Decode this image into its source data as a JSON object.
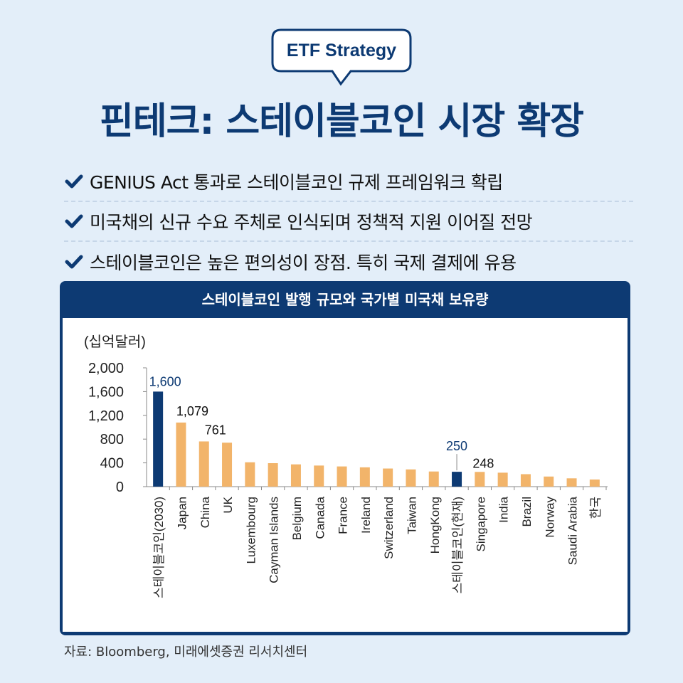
{
  "badge": "ETF Strategy",
  "title": "핀테크: 스테이블코인 시장 확장",
  "bullets": [
    "GENIUS Act 통과로 스테이블코인 규제 프레임워크 확립",
    "미국채의 신규 수요 주체로 인식되며 정책적 지원 이어질 전망",
    "스테이블코인은 높은 편의성이 장점. 특히 국제 결제에 유용"
  ],
  "colors": {
    "navy": "#0d3a73",
    "orange": "#f2b46a",
    "background": "#e3eef9"
  },
  "chart_data": {
    "type": "bar",
    "title": "스테이블코인 발행 규모와 국가별 미국채 보유량",
    "unit_label": "(십억달러)",
    "ylim": [
      0,
      2000
    ],
    "yticks": [
      "2,000",
      "1,600",
      "1,200",
      "800",
      "400",
      "0"
    ],
    "ytick_values": [
      2000,
      1600,
      1200,
      800,
      400,
      0
    ],
    "grid": false,
    "legend": "none",
    "categories": [
      "스테이블코인(2030)",
      "Japan",
      "China",
      "UK",
      "Luxembourg",
      "Cayman Islands",
      "Belgium",
      "Canada",
      "France",
      "Ireland",
      "Switzerland",
      "Taiwan",
      "HongKong",
      "스테이블코인(현재)",
      "Singapore",
      "India",
      "Brazil",
      "Norway",
      "Saudi Arabia",
      "한국"
    ],
    "values": [
      1600,
      1079,
      761,
      740,
      410,
      395,
      375,
      355,
      340,
      325,
      305,
      290,
      255,
      250,
      248,
      235,
      210,
      170,
      140,
      120
    ],
    "highlight": [
      true,
      false,
      false,
      false,
      false,
      false,
      false,
      false,
      false,
      false,
      false,
      false,
      false,
      true,
      false,
      false,
      false,
      false,
      false,
      false
    ],
    "data_labels": [
      "1,600",
      "1,079",
      "761",
      "",
      "",
      "",
      "",
      "",
      "",
      "",
      "",
      "",
      "",
      "250",
      "248",
      "",
      "",
      "",
      "",
      ""
    ]
  },
  "source": "자료: Bloomberg, 미래에셋증권 리서치센터"
}
